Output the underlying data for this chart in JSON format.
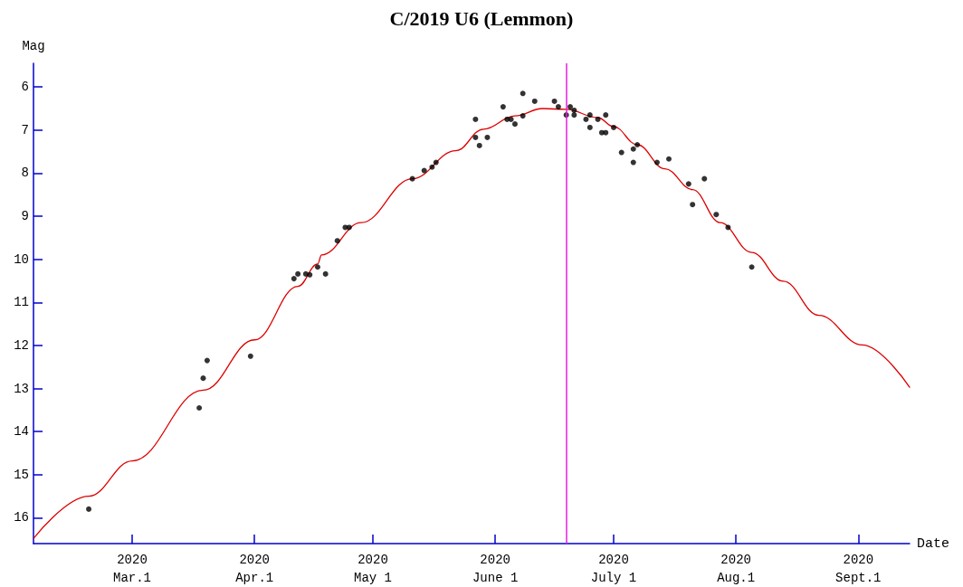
{
  "chart_data": {
    "type": "scatter",
    "title": "C/2019 U6 (Lemmon)",
    "xlabel": "Date",
    "ylabel": "Mag",
    "xlim": [
      "2020-02-05",
      "2020-09-14"
    ],
    "xticks": [
      {
        "value": "2020-03-01",
        "label": "2020\nMar.1"
      },
      {
        "value": "2020-04-01",
        "label": "2020\nApr.1"
      },
      {
        "value": "2020-05-01",
        "label": "2020\nMay 1"
      },
      {
        "value": "2020-06-01",
        "label": "2020\nJune 1"
      },
      {
        "value": "2020-07-01",
        "label": "2020\nJuly 1"
      },
      {
        "value": "2020-08-01",
        "label": "2020\nAug.1"
      },
      {
        "value": "2020-09-01",
        "label": "2020\nSept.1"
      }
    ],
    "ylim": [
      16.6,
      5.45
    ],
    "yticks": [
      6,
      7,
      8,
      9,
      10,
      11,
      12,
      13,
      14,
      15,
      16
    ],
    "grid": false,
    "ref_lines": [
      {
        "axis": "x",
        "value": "2020-06-19",
        "color": "#e020e0"
      }
    ],
    "series": [
      {
        "color": "#000000",
        "marker": "circle",
        "x": [
          "2020-02-19",
          "2020-03-18",
          "2020-03-19",
          "2020-03-20",
          "2020-03-31",
          "2020-04-11",
          "2020-04-12",
          "2020-04-14",
          "2020-04-15",
          "2020-04-17",
          "2020-04-19",
          "2020-04-22",
          "2020-04-24",
          "2020-04-25",
          "2020-05-11",
          "2020-05-14",
          "2020-05-16",
          "2020-05-17",
          "2020-05-27",
          "2020-05-27",
          "2020-05-28",
          "2020-05-30",
          "2020-06-03",
          "2020-06-04",
          "2020-06-05",
          "2020-06-06",
          "2020-06-08",
          "2020-06-08",
          "2020-06-11",
          "2020-06-16",
          "2020-06-17",
          "2020-06-19",
          "2020-06-20",
          "2020-06-21",
          "2020-06-21",
          "2020-06-24",
          "2020-06-25",
          "2020-06-25",
          "2020-06-27",
          "2020-06-29",
          "2020-06-28",
          "2020-06-29",
          "2020-07-01",
          "2020-07-03",
          "2020-07-06",
          "2020-07-06",
          "2020-07-07",
          "2020-07-12",
          "2020-07-15",
          "2020-07-20",
          "2020-07-21",
          "2020-07-24",
          "2020-07-27",
          "2020-07-30",
          "2020-08-05"
        ],
        "values": [
          15.8,
          13.45,
          12.76,
          12.35,
          12.25,
          10.45,
          10.34,
          10.34,
          10.36,
          10.18,
          10.34,
          9.57,
          9.26,
          9.26,
          8.13,
          7.94,
          7.86,
          7.75,
          6.75,
          7.17,
          7.36,
          7.17,
          6.46,
          6.75,
          6.75,
          6.86,
          6.15,
          6.67,
          6.33,
          6.33,
          6.46,
          6.65,
          6.46,
          6.54,
          6.65,
          6.75,
          6.65,
          6.94,
          6.75,
          6.65,
          7.06,
          7.06,
          6.94,
          7.52,
          7.44,
          7.75,
          7.34,
          7.75,
          7.67,
          8.25,
          8.73,
          8.13,
          8.96,
          9.26,
          10.18
        ]
      },
      {
        "type": "line",
        "color": "#dd0000",
        "marker": "none",
        "line_style": "solid",
        "x": [
          "2020-02-05",
          "2020-02-19",
          "2020-03-01",
          "2020-03-19",
          "2020-04-01",
          "2020-04-12",
          "2020-04-17",
          "2020-04-18",
          "2020-04-28",
          "2020-05-11",
          "2020-05-22",
          "2020-05-29",
          "2020-06-06",
          "2020-06-13",
          "2020-06-19",
          "2020-06-27",
          "2020-07-01",
          "2020-07-07",
          "2020-07-14",
          "2020-07-21",
          "2020-07-28",
          "2020-08-05",
          "2020-08-13",
          "2020-08-22",
          "2020-09-02",
          "2020-09-14"
        ],
        "values": [
          16.48,
          15.5,
          14.68,
          13.04,
          11.87,
          10.63,
          10.11,
          9.9,
          9.15,
          8.13,
          7.48,
          6.98,
          6.67,
          6.5,
          6.52,
          6.71,
          6.92,
          7.34,
          7.9,
          8.38,
          9.15,
          9.84,
          10.51,
          11.3,
          11.99,
          12.97
        ]
      }
    ]
  }
}
